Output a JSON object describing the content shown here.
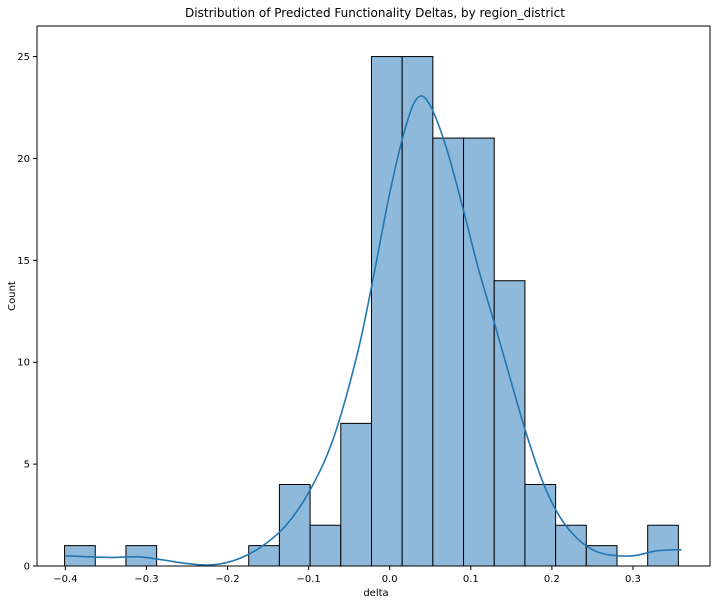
{
  "chart_data": {
    "type": "bar",
    "title": "Distribution of Predicted Functionality Deltas, by region_district",
    "xlabel": "delta",
    "ylabel": "Count",
    "xlim": [
      -0.435,
      0.395
    ],
    "ylim": [
      0,
      26.5
    ],
    "x_ticks": [
      -0.4,
      -0.3,
      -0.2,
      -0.1,
      0.0,
      0.1,
      0.2,
      0.3
    ],
    "x_tick_labels": [
      "−0.4",
      "−0.3",
      "−0.2",
      "−0.1",
      "0.0",
      "0.1",
      "0.2",
      "0.3"
    ],
    "y_ticks": [
      0,
      5,
      10,
      15,
      20,
      25
    ],
    "y_tick_labels": [
      "0",
      "5",
      "10",
      "15",
      "20",
      "25"
    ],
    "bin_start": -0.401,
    "bin_width": 0.03785,
    "values": [
      1,
      0,
      1,
      0,
      0,
      0,
      1,
      4,
      2,
      7,
      25,
      25,
      21,
      21,
      14,
      4,
      2,
      1,
      0,
      2
    ],
    "kde": {
      "x": [
        -0.4,
        -0.37,
        -0.34,
        -0.31,
        -0.28,
        -0.25,
        -0.22,
        -0.19,
        -0.16,
        -0.13,
        -0.1,
        -0.07,
        -0.04,
        -0.02,
        0.0,
        0.02,
        0.035,
        0.05,
        0.07,
        0.09,
        0.11,
        0.13,
        0.15,
        0.17,
        0.19,
        0.21,
        0.23,
        0.25,
        0.27,
        0.3,
        0.33,
        0.36
      ],
      "y": [
        0.5,
        0.45,
        0.42,
        0.45,
        0.3,
        0.12,
        0.05,
        0.3,
        0.9,
        1.9,
        3.6,
        6.2,
        10.4,
        14.2,
        18.3,
        21.6,
        23.0,
        22.6,
        20.5,
        17.6,
        14.5,
        11.8,
        9.0,
        6.3,
        4.0,
        2.4,
        1.4,
        0.8,
        0.55,
        0.5,
        0.75,
        0.8
      ]
    },
    "bar_fill": "#8fb9da",
    "bar_edge": "#000000",
    "kde_color": "#1f77b4",
    "grid": false
  }
}
